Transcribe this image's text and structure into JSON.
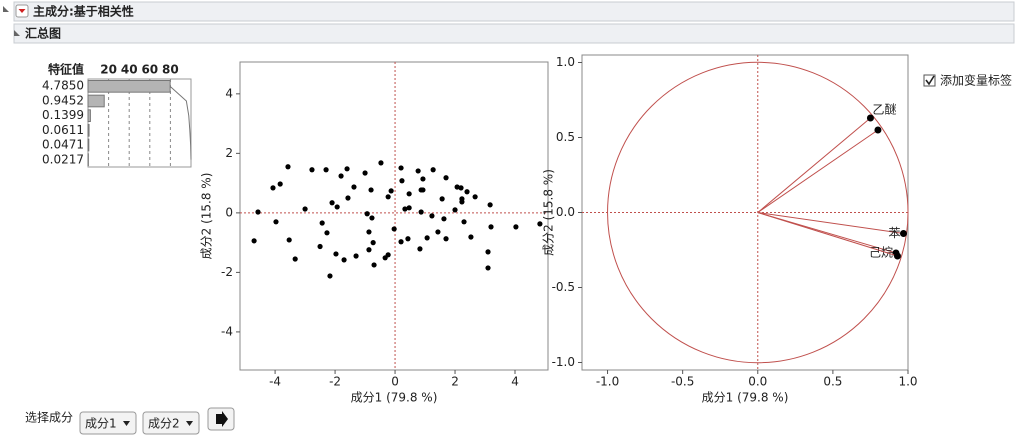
{
  "header": {
    "title": "主成分:基于相关性",
    "section": "汇总图"
  },
  "summary": {
    "eigenvalue_header": "特征值",
    "eigenvalues": [
      "4.7850",
      "0.9452",
      "0.1399",
      "0.0611",
      "0.0471",
      "0.0217"
    ]
  },
  "options": {
    "checkbox_label": "添加变量标签",
    "select_label": "选择成分",
    "dropdown_1": "成分1",
    "dropdown_2": "成分2"
  },
  "chart_data": [
    {
      "type": "bar",
      "orientation": "horizontal",
      "values": [
        79.75,
        15.75,
        2.33,
        1.02,
        0.79,
        0.36
      ],
      "cumulative": [
        79.75,
        95.5,
        97.83,
        98.85,
        99.64,
        100
      ],
      "color": "#b4b4b4",
      "xlim": [
        0,
        100
      ],
      "xticks": [
        20,
        40,
        60,
        80
      ],
      "grid": true
    },
    {
      "type": "scatter",
      "x_label": "成分1 (79.8 %)",
      "y_label": "成分2 (15.8 %)",
      "color": "#000000",
      "ref_color": "#c0504d",
      "x": [
        -4.7,
        -4.57,
        -4.07,
        -3.97,
        -3.83,
        -3.57,
        -3.53,
        -3.33,
        -3.0,
        -2.77,
        -2.5,
        -2.43,
        -2.3,
        -2.27,
        -2.17,
        -2.1,
        -1.97,
        -1.93,
        -1.8,
        -1.7,
        -1.6,
        -1.57,
        -1.37,
        -1.3,
        -1.0,
        -0.93,
        -0.87,
        -0.87,
        -0.8,
        -0.77,
        -0.73,
        -0.7,
        -0.47,
        -0.33,
        -0.23,
        -0.23,
        -0.13,
        -0.03,
        0.2,
        0.2,
        0.23,
        0.33,
        0.43,
        0.47,
        0.47,
        0.77,
        0.83,
        0.87,
        0.87,
        0.93,
        0.93,
        1.07,
        1.23,
        1.27,
        1.43,
        1.57,
        1.63,
        1.7,
        1.7,
        2.0,
        2.07,
        2.2,
        2.23,
        2.23,
        2.3,
        2.4,
        2.53,
        2.67,
        3.17,
        3.1,
        3.1,
        3.2,
        4.03,
        4.83
      ],
      "y": [
        -0.94,
        0.03,
        0.84,
        -0.3,
        0.97,
        1.55,
        -0.91,
        -1.55,
        0.13,
        1.45,
        -1.13,
        -0.34,
        1.45,
        -0.67,
        -2.12,
        0.34,
        -1.38,
        0.2,
        1.24,
        -1.58,
        1.48,
        0.5,
        0.87,
        -1.45,
        1.34,
        -0.03,
        -0.64,
        -1.24,
        0.77,
        -0.17,
        -1.0,
        -1.75,
        1.68,
        -1.51,
        0.54,
        -1.41,
        0.74,
        -0.54,
        1.51,
        -0.97,
        1.08,
        0.13,
        -0.87,
        0.64,
        0.17,
        1.41,
        -1.21,
        0.03,
        0.77,
        0.77,
        1.14,
        -0.84,
        -0.1,
        1.45,
        -0.64,
        0.47,
        -0.2,
        1.18,
        -0.87,
        0.1,
        0.87,
        0.84,
        0.47,
        0.37,
        -0.3,
        0.71,
        -0.81,
        0.54,
        0.27,
        -1.31,
        -1.85,
        -0.47,
        -0.47,
        -0.37
      ],
      "xlim": [
        -5.17,
        5.1
      ],
      "ylim": [
        -5.28,
        5.07
      ],
      "xticks": [
        -4,
        -2,
        0,
        2,
        4
      ],
      "yticks": [
        -4,
        -2,
        0,
        2,
        4
      ]
    },
    {
      "type": "loading",
      "x_label": "成分1 (79.8 %)",
      "y_label": "成分2 (15.8 %)",
      "color": "#000000",
      "ref_color": "#c0504d",
      "x": [
        0.75,
        0.8,
        0.97,
        0.92,
        0.93
      ],
      "y": [
        0.63,
        0.55,
        -0.14,
        -0.27,
        -0.29
      ],
      "labels": [
        "乙醚",
        null,
        "苯",
        "己烷",
        null
      ],
      "xlim": [
        -1.17,
        1.0
      ],
      "ylim": [
        -1.05,
        1.05
      ],
      "xticks": [
        {
          "value": -1,
          "label": "-1.0"
        },
        -0.5,
        {
          "value": 0,
          "label": "0.0"
        },
        0.5,
        {
          "value": 1,
          "label": "1.0"
        }
      ],
      "yticks": [
        {
          "value": -1,
          "label": "-1.0"
        },
        -0.5,
        {
          "value": 0,
          "label": "0.0"
        },
        0.5,
        {
          "value": 1,
          "label": "1.0"
        }
      ]
    }
  ]
}
